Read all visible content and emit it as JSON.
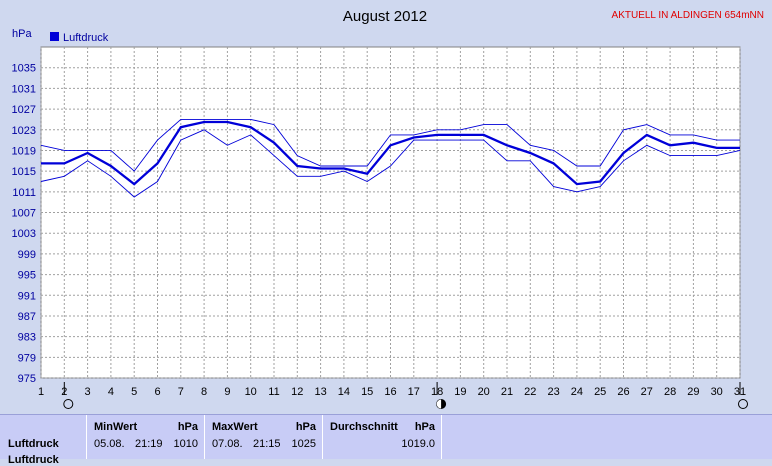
{
  "chart_data": {
    "type": "line",
    "title": "August 2012",
    "ylabel": "hPa",
    "ylim": [
      975,
      1039
    ],
    "yticks": [
      975,
      979,
      983,
      987,
      991,
      995,
      999,
      1003,
      1007,
      1011,
      1015,
      1019,
      1023,
      1027,
      1031,
      1035
    ],
    "x": [
      1,
      2,
      3,
      4,
      5,
      6,
      7,
      8,
      9,
      10,
      11,
      12,
      13,
      14,
      15,
      16,
      17,
      18,
      19,
      20,
      21,
      22,
      23,
      24,
      25,
      26,
      27,
      28,
      29,
      30,
      31
    ],
    "xlim": [
      1,
      31
    ],
    "grid": true,
    "legend": "top-left",
    "series": [
      {
        "name": "Luftdruck",
        "role": "mean",
        "values": [
          1016.5,
          1016.5,
          1018.5,
          1016,
          1012.5,
          1016.5,
          1023.5,
          1024.5,
          1024.5,
          1023.5,
          1020.5,
          1016,
          1015.5,
          1015.5,
          1014.5,
          1020,
          1021.5,
          1022,
          1022,
          1022,
          1020,
          1018.5,
          1016.5,
          1012.5,
          1013,
          1018.5,
          1022,
          1020,
          1020.5,
          1019.5,
          1019.5
        ]
      },
      {
        "role": "max",
        "values": [
          1020,
          1019,
          1019,
          1019,
          1015,
          1021,
          1025,
          1025,
          1025,
          1025,
          1024,
          1018,
          1016,
          1016,
          1016,
          1022,
          1022,
          1023,
          1023,
          1024,
          1024,
          1020,
          1019,
          1016,
          1016,
          1023,
          1024,
          1022,
          1022,
          1021,
          1021
        ]
      },
      {
        "role": "min",
        "values": [
          1013,
          1014,
          1017,
          1014,
          1010,
          1013,
          1021,
          1023,
          1020,
          1022,
          1018,
          1014,
          1014,
          1015,
          1013,
          1016,
          1021,
          1021,
          1021,
          1021,
          1017,
          1017,
          1012,
          1011,
          1012,
          1017,
          1020,
          1018,
          1018,
          1018,
          1019
        ]
      }
    ],
    "moon_phases": [
      {
        "day": 2,
        "phase": "full-moon-icon"
      },
      {
        "day": 18,
        "phase": "new-moon-icon"
      },
      {
        "day": 31,
        "phase": "full-moon-icon"
      }
    ]
  },
  "banner": "AKTUELL IN ALDINGEN 654mNN",
  "colors": {
    "background": "#cfd8ef",
    "plot_bg": "#ffffff",
    "line": "#0000d8",
    "banner": "#e00000",
    "axis_text": "#0000a0",
    "panel": "#c8ccf6"
  },
  "stats": {
    "row_label": "Luftdruck",
    "row_label2": "Luftdruck",
    "min": {
      "header": "MinWert",
      "unit": "hPa",
      "date": "05.08.",
      "time": "21:19",
      "value": "1010"
    },
    "max": {
      "header": "MaxWert",
      "unit": "hPa",
      "date": "07.08.",
      "time": "21:15",
      "value": "1025"
    },
    "avg": {
      "header": "Durchschnitt",
      "unit": "hPa",
      "value": "1019.0"
    }
  }
}
